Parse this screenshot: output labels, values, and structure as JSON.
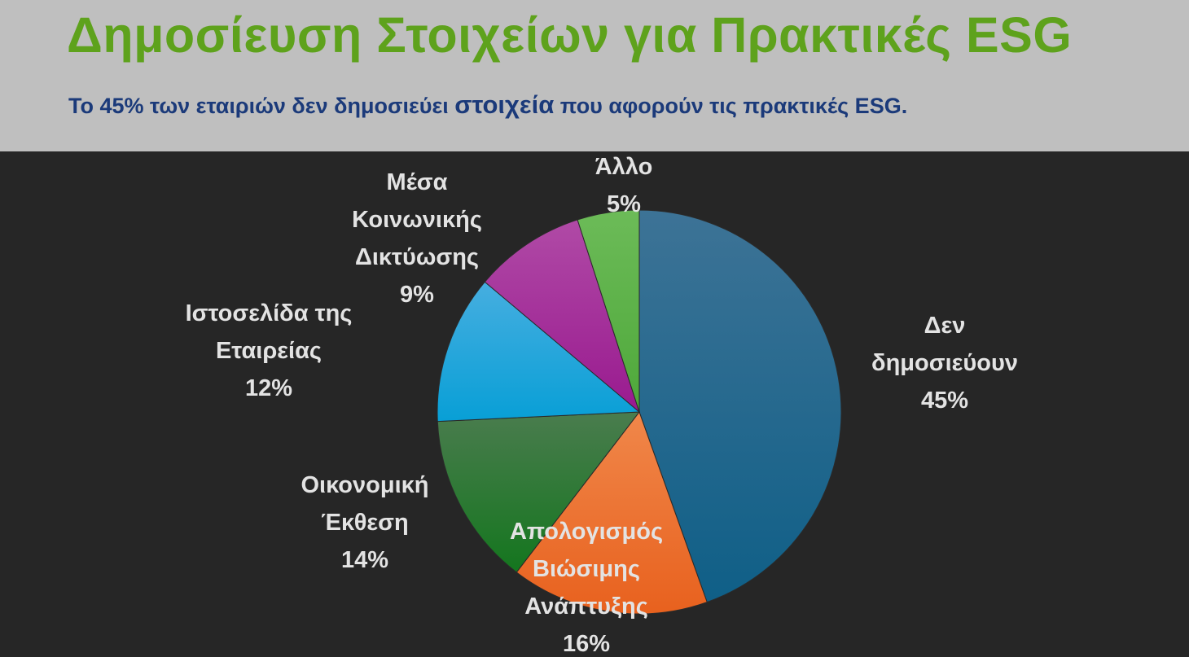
{
  "title": "Δημοσίευση Στοιχείων για Πρακτικές ESG",
  "subtitle": {
    "before": "Το 45% των εταιριών δεν δημοσιεύει ",
    "emphasis": "στοιχεία",
    "after": " που αφορούν τις πρακτικές ESG."
  },
  "chart_data": {
    "type": "pie",
    "slices": [
      {
        "label_lines": [
          "Δεν",
          "δημοσιεύουν"
        ],
        "value": 45,
        "value_label": "45%",
        "color": "#0f5f87",
        "color_light": "#3d7396"
      },
      {
        "label_lines": [
          "Απολογισμός",
          "Βιώσιμης",
          "Ανάπτυξης"
        ],
        "value": 16,
        "value_label": "16%",
        "color": "#e8611e",
        "color_light": "#f0874a"
      },
      {
        "label_lines": [
          "Οικονομική",
          "Έκθεση"
        ],
        "value": 14,
        "value_label": "14%",
        "color": "#14761e",
        "color_light": "#4a7c4e"
      },
      {
        "label_lines": [
          "Ιστοσελίδα της",
          "Εταιρείας"
        ],
        "value": 12,
        "value_label": "12%",
        "color": "#089fd6",
        "color_light": "#46aee0"
      },
      {
        "label_lines": [
          "Μέσα",
          "Κοινωνικής",
          "Δικτύωσης"
        ],
        "value": 9,
        "value_label": "9%",
        "color": "#991a8f",
        "color_light": "#b04aa6"
      },
      {
        "label_lines": [
          "Άλλο"
        ],
        "value": 5,
        "value_label": "5%",
        "color": "#4ea83a",
        "color_light": "#6cbb58"
      }
    ]
  }
}
